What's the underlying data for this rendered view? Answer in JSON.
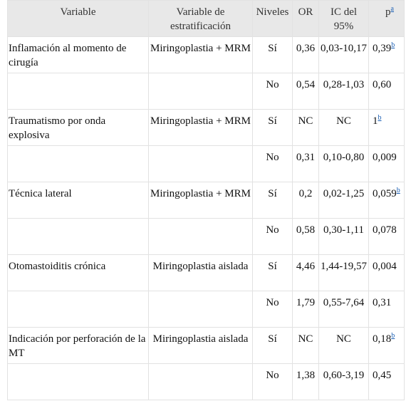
{
  "table": {
    "header": {
      "variable": "Variable",
      "stratification": "Variable de estratificación",
      "level": "Niveles",
      "or": "OR",
      "ci": "IC del 95%",
      "p": "p",
      "p_note": "a"
    },
    "rows": [
      {
        "variable": "Inflamación al momento de cirugía",
        "stratification": "Miringoplastia + MRM",
        "level": "Sí",
        "or": "0,36",
        "ci": "0,03-10,17",
        "p": "0,39",
        "p_note": "b"
      },
      {
        "level": "No",
        "or": "0,54",
        "ci": "0,28-1,03",
        "p": "0,60"
      },
      {
        "variable": "Traumatismo por onda explosiva",
        "stratification": "Miringoplastia + MRM",
        "level": "Sí",
        "or": "NC",
        "ci": "NC",
        "p": "1",
        "p_note": "b"
      },
      {
        "level": "No",
        "or": "0,31",
        "ci": "0,10-0,80",
        "p": "0,009"
      },
      {
        "variable": "Técnica lateral",
        "stratification": "Miringoplastia + MRM",
        "level": "Sí",
        "or": "0,2",
        "ci": "0,02-1,25",
        "p": "0,059",
        "p_note": "b"
      },
      {
        "level": "No",
        "or": "0,58",
        "ci": "0,30-1,11",
        "p": "0,078"
      },
      {
        "variable": "Otomastoiditis crónica",
        "stratification": "Miringoplastia aislada",
        "level": "Sí",
        "or": "4,46",
        "ci": "1,44-19,57",
        "p": "0,004"
      },
      {
        "level": "No",
        "or": "1,79",
        "ci": "0,55-7,64",
        "p": "0,31"
      },
      {
        "variable": "Indicación por perforación de la MT",
        "stratification": "Miringoplastia aislada",
        "level": "Sí",
        "or": "NC",
        "ci": "NC",
        "p": "0,18",
        "p_note": "b"
      },
      {
        "level": "No",
        "or": "1,38",
        "ci": "0,60-3,19",
        "p": "0,45"
      }
    ]
  }
}
